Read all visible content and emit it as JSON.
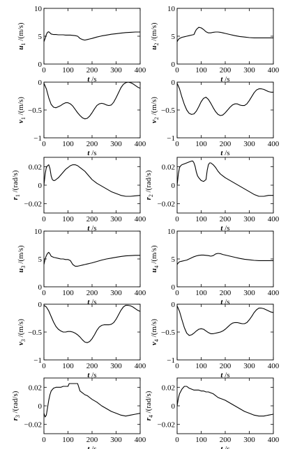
{
  "chart_data": [
    {
      "type": "line",
      "ylabel": {
        "sym": "u",
        "sub": "1",
        "unit": "/(m/s)"
      },
      "xlabel": {
        "sym": "t",
        "unit": " /s"
      },
      "xlim": [
        0,
        400
      ],
      "ylim": [
        0,
        10
      ],
      "xticks": [
        0,
        100,
        200,
        300,
        400
      ],
      "yticks": [
        0,
        5,
        10
      ],
      "ytick_labels": [
        "0",
        "5",
        "10"
      ],
      "x": [
        0,
        5,
        10,
        15,
        20,
        25,
        30,
        40,
        50,
        60,
        70,
        80,
        90,
        100,
        110,
        120,
        130,
        140,
        150,
        160,
        170,
        180,
        190,
        200,
        220,
        240,
        260,
        280,
        300,
        320,
        340,
        360,
        380,
        400
      ],
      "y": [
        4.0,
        4.6,
        5.3,
        5.7,
        5.8,
        5.6,
        5.4,
        5.3,
        5.3,
        5.25,
        5.25,
        5.25,
        5.2,
        5.2,
        5.2,
        5.15,
        5.1,
        5.0,
        4.6,
        4.4,
        4.3,
        4.4,
        4.5,
        4.6,
        4.85,
        5.05,
        5.2,
        5.35,
        5.45,
        5.55,
        5.65,
        5.7,
        5.75,
        5.75
      ]
    },
    {
      "type": "line",
      "ylabel": {
        "sym": "u",
        "sub": "2",
        "unit": "/(m/s)"
      },
      "xlabel": {
        "sym": "t",
        "unit": " /s"
      },
      "xlim": [
        0,
        400
      ],
      "ylim": [
        0,
        10
      ],
      "xticks": [
        0,
        100,
        200,
        300,
        400
      ],
      "yticks": [
        0,
        5,
        10
      ],
      "ytick_labels": [
        "0",
        "5",
        "10"
      ],
      "x": [
        0,
        5,
        10,
        20,
        30,
        40,
        50,
        60,
        70,
        75,
        80,
        90,
        100,
        110,
        120,
        130,
        140,
        150,
        160,
        170,
        180,
        190,
        200,
        220,
        240,
        260,
        280,
        300,
        320,
        340,
        360,
        380,
        400
      ],
      "y": [
        4.0,
        4.4,
        4.6,
        4.8,
        4.9,
        5.0,
        5.1,
        5.2,
        5.3,
        5.8,
        6.2,
        6.6,
        6.5,
        6.2,
        5.8,
        5.6,
        5.6,
        5.7,
        5.75,
        5.75,
        5.7,
        5.6,
        5.5,
        5.3,
        5.1,
        4.95,
        4.85,
        4.75,
        4.7,
        4.7,
        4.7,
        4.7,
        4.7
      ]
    },
    {
      "type": "line",
      "ylabel": {
        "sym": "v",
        "sub": "1",
        "unit": "/(m/s)"
      },
      "xlabel": {
        "sym": "t",
        "unit": " /s"
      },
      "xlim": [
        0,
        400
      ],
      "ylim": [
        -1,
        0
      ],
      "xticks": [
        0,
        100,
        200,
        300,
        400
      ],
      "yticks": [
        -1,
        -0.5,
        0
      ],
      "ytick_labels": [
        "−1",
        "−0.5",
        "0"
      ],
      "x": [
        0,
        10,
        20,
        30,
        40,
        50,
        60,
        70,
        80,
        90,
        100,
        110,
        120,
        130,
        140,
        150,
        160,
        170,
        180,
        190,
        200,
        210,
        220,
        230,
        240,
        250,
        260,
        270,
        280,
        290,
        300,
        310,
        320,
        330,
        340,
        350,
        360,
        370,
        380,
        390,
        400
      ],
      "y": [
        -0.02,
        -0.12,
        -0.28,
        -0.4,
        -0.45,
        -0.46,
        -0.44,
        -0.42,
        -0.39,
        -0.37,
        -0.37,
        -0.39,
        -0.43,
        -0.49,
        -0.55,
        -0.6,
        -0.64,
        -0.66,
        -0.65,
        -0.61,
        -0.55,
        -0.48,
        -0.42,
        -0.39,
        -0.38,
        -0.39,
        -0.41,
        -0.42,
        -0.41,
        -0.36,
        -0.28,
        -0.19,
        -0.1,
        -0.04,
        -0.01,
        0.0,
        -0.01,
        -0.03,
        -0.06,
        -0.09,
        -0.11
      ]
    },
    {
      "type": "line",
      "ylabel": {
        "sym": "v",
        "sub": "2",
        "unit": "/(m/s)"
      },
      "xlabel": {
        "sym": "t",
        "unit": " /s"
      },
      "xlim": [
        0,
        400
      ],
      "ylim": [
        -1,
        0
      ],
      "xticks": [
        0,
        100,
        200,
        300,
        400
      ],
      "yticks": [
        -1,
        -0.5,
        0
      ],
      "ytick_labels": [
        "−1",
        "−0.5",
        "0"
      ],
      "x": [
        0,
        10,
        20,
        30,
        40,
        50,
        60,
        70,
        80,
        90,
        100,
        110,
        120,
        130,
        140,
        150,
        160,
        170,
        180,
        190,
        200,
        210,
        220,
        230,
        240,
        250,
        260,
        270,
        280,
        290,
        300,
        310,
        320,
        330,
        340,
        350,
        360,
        370,
        380,
        390,
        400
      ],
      "y": [
        -0.02,
        -0.12,
        -0.27,
        -0.4,
        -0.5,
        -0.56,
        -0.58,
        -0.57,
        -0.52,
        -0.44,
        -0.35,
        -0.29,
        -0.27,
        -0.31,
        -0.38,
        -0.46,
        -0.53,
        -0.58,
        -0.6,
        -0.59,
        -0.55,
        -0.5,
        -0.45,
        -0.41,
        -0.39,
        -0.39,
        -0.41,
        -0.42,
        -0.42,
        -0.39,
        -0.33,
        -0.26,
        -0.19,
        -0.14,
        -0.12,
        -0.12,
        -0.13,
        -0.15,
        -0.17,
        -0.18,
        -0.18
      ]
    },
    {
      "type": "line",
      "ylabel": {
        "sym": "r",
        "sub": "1",
        "unit": "/(rad/s)"
      },
      "xlabel": {
        "sym": "t",
        "unit": " /s"
      },
      "xlim": [
        0,
        400
      ],
      "ylim": [
        -0.03,
        0.03
      ],
      "xticks": [
        0,
        100,
        200,
        300,
        400
      ],
      "yticks": [
        -0.02,
        0,
        0.02
      ],
      "ytick_labels": [
        "−0.02",
        "0",
        "0.02"
      ],
      "x": [
        0,
        5,
        10,
        15,
        20,
        25,
        30,
        35,
        40,
        45,
        50,
        60,
        70,
        80,
        90,
        100,
        110,
        120,
        130,
        140,
        150,
        160,
        170,
        180,
        190,
        200,
        220,
        240,
        260,
        280,
        300,
        320,
        340,
        360,
        380,
        400
      ],
      "y": [
        0.0,
        0.012,
        0.019,
        0.021,
        0.022,
        0.018,
        0.01,
        0.006,
        0.005,
        0.005,
        0.006,
        0.008,
        0.011,
        0.014,
        0.017,
        0.019,
        0.021,
        0.022,
        0.022,
        0.021,
        0.019,
        0.017,
        0.015,
        0.012,
        0.009,
        0.006,
        0.002,
        -0.001,
        -0.004,
        -0.007,
        -0.009,
        -0.011,
        -0.012,
        -0.012,
        -0.0115,
        -0.011
      ]
    },
    {
      "type": "line",
      "ylabel": {
        "sym": "r",
        "sub": "2",
        "unit": "/(rad/s)"
      },
      "xlabel": {
        "sym": "t",
        "unit": " /s"
      },
      "xlim": [
        0,
        400
      ],
      "ylim": [
        -0.03,
        0.03
      ],
      "xticks": [
        0,
        100,
        200,
        300,
        400
      ],
      "yticks": [
        -0.02,
        0,
        0.02
      ],
      "ytick_labels": [
        "−0.02",
        "0",
        "0.02"
      ],
      "x": [
        0,
        5,
        10,
        15,
        20,
        30,
        40,
        50,
        60,
        65,
        70,
        75,
        80,
        85,
        90,
        100,
        110,
        120,
        125,
        130,
        135,
        140,
        150,
        160,
        170,
        180,
        190,
        200,
        220,
        240,
        260,
        280,
        300,
        320,
        340,
        360,
        380,
        400
      ],
      "y": [
        0.0,
        0.012,
        0.019,
        0.021,
        0.022,
        0.023,
        0.024,
        0.025,
        0.026,
        0.026,
        0.024,
        0.02,
        0.014,
        0.01,
        0.008,
        0.005,
        0.004,
        0.006,
        0.016,
        0.022,
        0.024,
        0.024,
        0.022,
        0.019,
        0.015,
        0.012,
        0.01,
        0.008,
        0.005,
        0.002,
        -0.001,
        -0.004,
        -0.007,
        -0.01,
        -0.012,
        -0.012,
        -0.011,
        -0.011
      ]
    },
    {
      "type": "line",
      "ylabel": {
        "sym": "u",
        "sub": "3",
        "unit": "/(m/s)"
      },
      "xlabel": {
        "sym": "t",
        "unit": " /s"
      },
      "xlim": [
        0,
        400
      ],
      "ylim": [
        0,
        10
      ],
      "xticks": [
        0,
        100,
        200,
        300,
        400
      ],
      "yticks": [
        0,
        5,
        10
      ],
      "ytick_labels": [
        "0",
        "5",
        "10"
      ],
      "x": [
        0,
        5,
        10,
        15,
        20,
        25,
        30,
        40,
        50,
        60,
        70,
        80,
        90,
        100,
        110,
        120,
        130,
        140,
        150,
        160,
        170,
        180,
        190,
        200,
        220,
        240,
        260,
        280,
        300,
        320,
        340,
        360,
        380,
        400
      ],
      "y": [
        4.0,
        5.0,
        5.6,
        6.0,
        6.2,
        5.9,
        5.5,
        5.3,
        5.2,
        5.1,
        5.0,
        5.0,
        4.9,
        4.9,
        4.7,
        4.0,
        3.7,
        3.7,
        3.8,
        3.9,
        4.0,
        4.1,
        4.2,
        4.3,
        4.55,
        4.8,
        5.0,
        5.15,
        5.3,
        5.45,
        5.55,
        5.6,
        5.65,
        5.65
      ]
    },
    {
      "type": "line",
      "ylabel": {
        "sym": "u",
        "sub": "4",
        "unit": "/(m/s)"
      },
      "xlabel": {
        "sym": "t",
        "unit": " /s"
      },
      "xlim": [
        0,
        400
      ],
      "ylim": [
        0,
        10
      ],
      "xticks": [
        0,
        100,
        200,
        300,
        400
      ],
      "yticks": [
        0,
        5,
        10
      ],
      "ytick_labels": [
        "0",
        "5",
        "10"
      ],
      "x": [
        0,
        5,
        10,
        20,
        30,
        40,
        50,
        60,
        70,
        80,
        90,
        100,
        110,
        120,
        130,
        140,
        150,
        160,
        170,
        180,
        190,
        200,
        220,
        240,
        260,
        280,
        300,
        320,
        340,
        360,
        380,
        400
      ],
      "y": [
        4.0,
        4.3,
        4.5,
        4.6,
        4.7,
        4.8,
        5.0,
        5.2,
        5.4,
        5.55,
        5.65,
        5.7,
        5.7,
        5.65,
        5.6,
        5.5,
        5.6,
        5.9,
        6.0,
        5.95,
        5.8,
        5.7,
        5.5,
        5.3,
        5.1,
        4.95,
        4.85,
        4.75,
        4.7,
        4.7,
        4.7,
        4.7
      ]
    },
    {
      "type": "line",
      "ylabel": {
        "sym": "v",
        "sub": "3",
        "unit": "/(m/s)"
      },
      "xlabel": {
        "sym": "t",
        "unit": " /s"
      },
      "xlim": [
        0,
        400
      ],
      "ylim": [
        -1,
        0
      ],
      "xticks": [
        0,
        100,
        200,
        300,
        400
      ],
      "yticks": [
        -1,
        -0.5,
        0
      ],
      "ytick_labels": [
        "−1",
        "−0.5",
        "0"
      ],
      "x": [
        0,
        10,
        20,
        30,
        40,
        50,
        60,
        70,
        80,
        90,
        100,
        110,
        120,
        130,
        140,
        150,
        160,
        170,
        180,
        190,
        200,
        210,
        220,
        230,
        240,
        250,
        260,
        270,
        280,
        290,
        300,
        310,
        320,
        330,
        340,
        350,
        360,
        370,
        380,
        390,
        400
      ],
      "y": [
        -0.02,
        -0.05,
        -0.12,
        -0.22,
        -0.32,
        -0.4,
        -0.45,
        -0.48,
        -0.5,
        -0.5,
        -0.49,
        -0.49,
        -0.5,
        -0.52,
        -0.55,
        -0.59,
        -0.64,
        -0.68,
        -0.69,
        -0.67,
        -0.62,
        -0.55,
        -0.47,
        -0.41,
        -0.38,
        -0.37,
        -0.37,
        -0.37,
        -0.36,
        -0.33,
        -0.27,
        -0.19,
        -0.11,
        -0.05,
        -0.02,
        -0.02,
        -0.03,
        -0.05,
        -0.08,
        -0.11,
        -0.13
      ]
    },
    {
      "type": "line",
      "ylabel": {
        "sym": "v",
        "sub": "4",
        "unit": "/(m/s)"
      },
      "xlabel": {
        "sym": "t",
        "unit": " /s"
      },
      "xlim": [
        0,
        400
      ],
      "ylim": [
        -1,
        0
      ],
      "xticks": [
        0,
        100,
        200,
        300,
        400
      ],
      "yticks": [
        -1,
        -0.5,
        0
      ],
      "ytick_labels": [
        "−1",
        "−0.5",
        "0"
      ],
      "x": [
        0,
        10,
        20,
        30,
        40,
        50,
        60,
        70,
        80,
        90,
        100,
        110,
        120,
        130,
        140,
        150,
        160,
        170,
        180,
        190,
        200,
        210,
        220,
        230,
        240,
        250,
        260,
        270,
        280,
        290,
        300,
        310,
        320,
        330,
        340,
        350,
        360,
        370,
        380,
        390,
        400
      ],
      "y": [
        -0.03,
        -0.13,
        -0.28,
        -0.42,
        -0.52,
        -0.56,
        -0.55,
        -0.52,
        -0.48,
        -0.45,
        -0.44,
        -0.45,
        -0.48,
        -0.51,
        -0.53,
        -0.53,
        -0.52,
        -0.51,
        -0.5,
        -0.48,
        -0.45,
        -0.41,
        -0.37,
        -0.34,
        -0.33,
        -0.33,
        -0.34,
        -0.35,
        -0.35,
        -0.33,
        -0.28,
        -0.22,
        -0.15,
        -0.1,
        -0.07,
        -0.07,
        -0.08,
        -0.1,
        -0.12,
        -0.14,
        -0.15
      ]
    },
    {
      "type": "line",
      "ylabel": {
        "sym": "r",
        "sub": "3",
        "unit": "/(rad/s)"
      },
      "xlabel": {
        "sym": "t",
        "unit": " /s"
      },
      "xlim": [
        0,
        400
      ],
      "ylim": [
        -0.03,
        0.03
      ],
      "xticks": [
        0,
        100,
        200,
        300,
        400
      ],
      "yticks": [
        -0.02,
        0,
        0.02
      ],
      "ytick_labels": [
        "−0.02",
        "0",
        "0.02"
      ],
      "x": [
        0,
        5,
        10,
        15,
        20,
        25,
        30,
        40,
        50,
        60,
        70,
        80,
        90,
        100,
        105,
        110,
        120,
        130,
        140,
        145,
        150,
        160,
        170,
        180,
        190,
        200,
        220,
        240,
        260,
        280,
        300,
        320,
        340,
        360,
        380,
        400
      ],
      "y": [
        -0.008,
        -0.012,
        -0.01,
        -0.002,
        0.006,
        0.012,
        0.016,
        0.019,
        0.02,
        0.02,
        0.02,
        0.021,
        0.021,
        0.021,
        0.024,
        0.024,
        0.024,
        0.024,
        0.024,
        0.02,
        0.016,
        0.014,
        0.012,
        0.011,
        0.009,
        0.007,
        0.004,
        0.0,
        -0.003,
        -0.006,
        -0.008,
        -0.01,
        -0.011,
        -0.01,
        -0.009,
        -0.008
      ]
    },
    {
      "type": "line",
      "ylabel": {
        "sym": "r",
        "sub": "4",
        "unit": "/(rad/s)"
      },
      "xlabel": {
        "sym": "t",
        "unit": " /s"
      },
      "xlim": [
        0,
        400
      ],
      "ylim": [
        -0.03,
        0.03
      ],
      "xticks": [
        0,
        100,
        200,
        300,
        400
      ],
      "yticks": [
        -0.02,
        0,
        0.02
      ],
      "ytick_labels": [
        "−0.02",
        "0",
        "0.02"
      ],
      "x": [
        0,
        5,
        10,
        20,
        30,
        40,
        50,
        60,
        70,
        80,
        90,
        100,
        110,
        120,
        130,
        140,
        150,
        160,
        170,
        180,
        190,
        200,
        220,
        240,
        260,
        280,
        300,
        320,
        340,
        360,
        380,
        400
      ],
      "y": [
        0.0,
        0.008,
        0.013,
        0.018,
        0.021,
        0.021,
        0.019,
        0.018,
        0.017,
        0.017,
        0.017,
        0.016,
        0.016,
        0.015,
        0.015,
        0.014,
        0.013,
        0.011,
        0.009,
        0.008,
        0.007,
        0.006,
        0.003,
        0.0,
        -0.003,
        -0.006,
        -0.008,
        -0.01,
        -0.011,
        -0.011,
        -0.01,
        -0.009
      ]
    }
  ]
}
